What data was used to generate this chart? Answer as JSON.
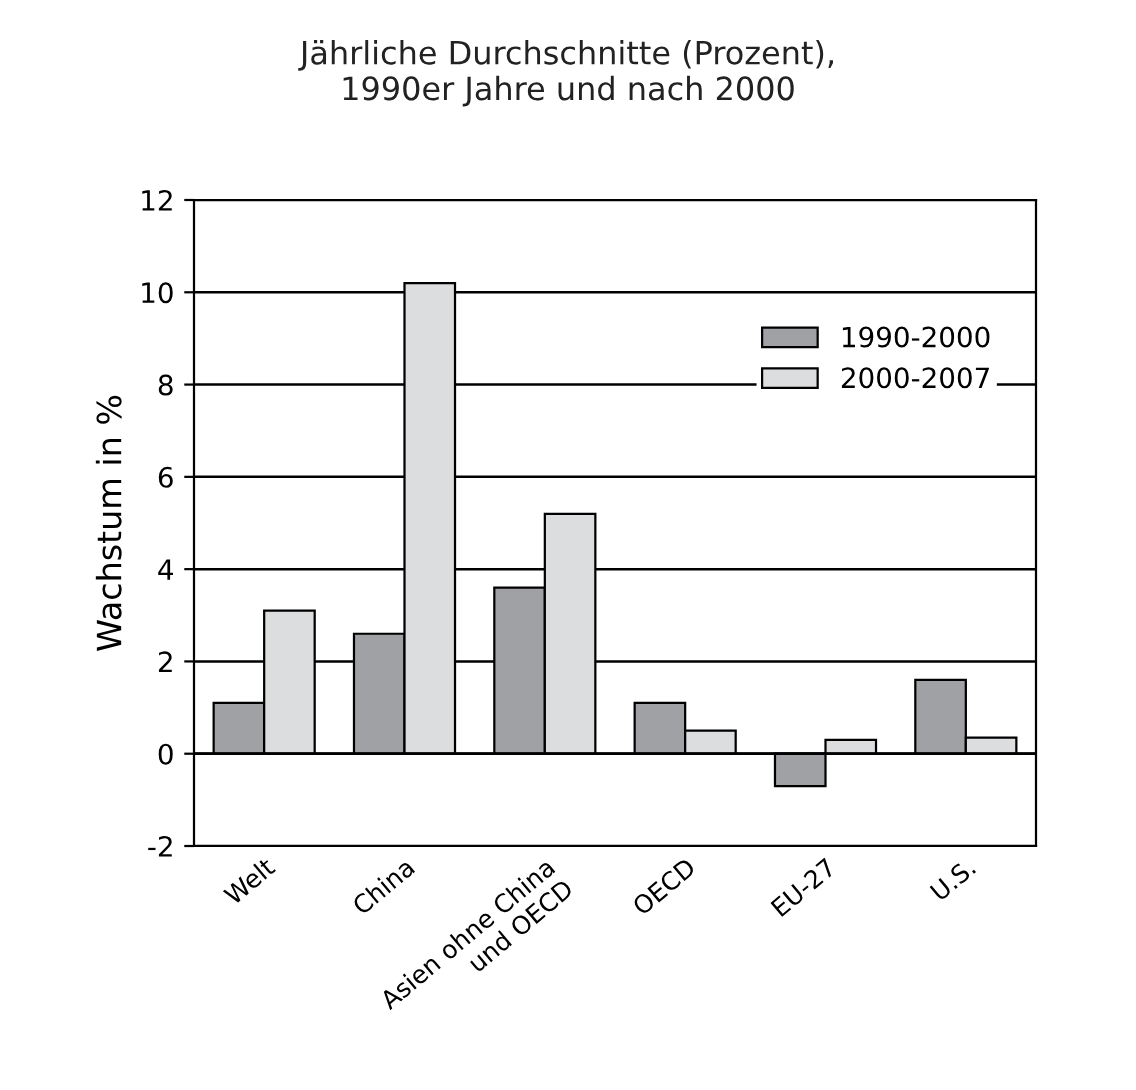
{
  "chart_data": {
    "type": "bar",
    "title": "Jährliche Durchschnitte (Prozent),\n1990er Jahre und nach 2000",
    "ylabel": "Wachstum in %",
    "categories": [
      "Welt",
      "China",
      "Asien ohne China\nund OECD",
      "OECD",
      "EU-27",
      "U.S."
    ],
    "series": [
      {
        "name": "1990-2000",
        "color": "#a0a1a5",
        "values": [
          1.1,
          2.6,
          3.6,
          1.1,
          -0.7,
          1.6
        ]
      },
      {
        "name": "2000-2007",
        "color": "#dcdddf",
        "values": [
          3.1,
          10.2,
          5.2,
          0.5,
          0.3,
          0.35
        ]
      }
    ],
    "ylim": [
      -2,
      12
    ],
    "yticks": [
      -2,
      0,
      2,
      4,
      6,
      8,
      10,
      12
    ],
    "grid": "y",
    "legend": "top right"
  }
}
